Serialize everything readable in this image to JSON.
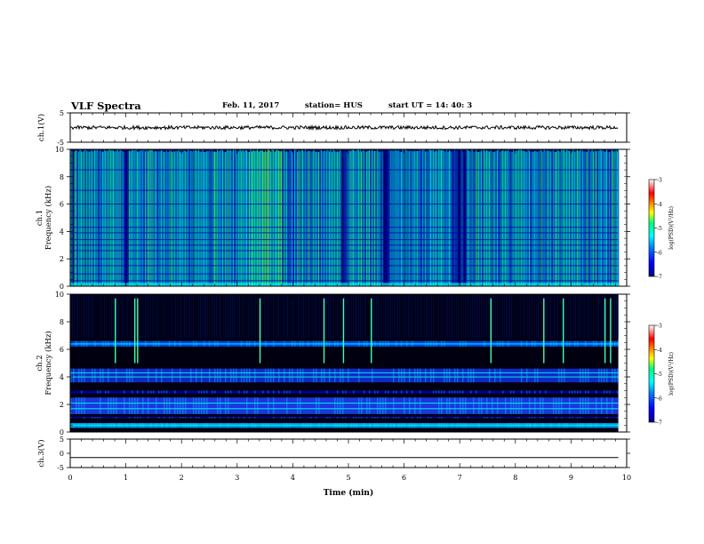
{
  "header": {
    "title": "VLF Spectra",
    "date": "Feb. 11, 2017",
    "station": "station= HUS",
    "start": "start  UT =   14: 40: 3"
  },
  "chart_data": [
    {
      "type": "line",
      "id": "ch1-waveform",
      "ylabel": "ch.1(V)",
      "ylim": [
        -5,
        5
      ],
      "yticks": [
        "5",
        "-5"
      ],
      "xlim": [
        0,
        10
      ],
      "description_values": {
        "baseline": 0,
        "amplitude_approx": 0.6,
        "end_min": 9.85
      }
    },
    {
      "type": "heatmap",
      "id": "ch1-spectrogram",
      "ylabel": "Frequency (kHz)",
      "ylabel_prefix": "ch.1",
      "ylim": [
        0,
        10
      ],
      "yticks": [
        "0",
        "2",
        "4",
        "6",
        "8",
        "10"
      ],
      "xlim": [
        0,
        10
      ],
      "data_end_min": 9.85,
      "colorbar": {
        "label": "log(PSD)(V²/Hz)",
        "range": [
          -7,
          -3
        ],
        "ticks": [
          "-3",
          "-4",
          "-5",
          "-6",
          "-7"
        ]
      }
    },
    {
      "type": "heatmap",
      "id": "ch2-spectrogram",
      "ylabel": "Frequency (kHz)",
      "ylabel_prefix": "ch.2",
      "ylim": [
        0,
        10
      ],
      "yticks": [
        "0",
        "2",
        "4",
        "6",
        "8",
        "10"
      ],
      "xlim": [
        0,
        10
      ],
      "data_end_min": 9.85,
      "bands_khz": [
        0.5,
        1.7,
        2.1,
        4.0,
        4.3,
        6.4
      ],
      "spike_times_min": [
        0.8,
        1.15,
        1.2,
        3.4,
        4.55,
        4.9,
        5.4,
        7.55,
        8.5,
        8.85,
        9.6,
        9.7
      ],
      "colorbar": {
        "label": "log(PSD)(V²/Hz)",
        "range": [
          -7,
          -3
        ],
        "ticks": [
          "-3",
          "-4",
          "-5",
          "-6",
          "-7"
        ]
      }
    },
    {
      "type": "line",
      "id": "ch3-waveform",
      "ylabel": "ch.3(V)",
      "ylim": [
        -5,
        5
      ],
      "yticks": [
        "5",
        "0",
        "-5"
      ],
      "xlim": [
        0,
        10
      ],
      "description_values": {
        "baseline": -1.5,
        "end_min": 9.85
      },
      "xlabel": "Time (min)",
      "xticks": [
        "0",
        "1",
        "2",
        "3",
        "4",
        "5",
        "6",
        "7",
        "8",
        "9",
        "10"
      ]
    }
  ],
  "colors": {
    "cmap": [
      "#000080",
      "#0000ff",
      "#0080ff",
      "#00ffff",
      "#00ff80",
      "#ffff00",
      "#ff8000",
      "#ff0000",
      "#ffffff"
    ]
  }
}
